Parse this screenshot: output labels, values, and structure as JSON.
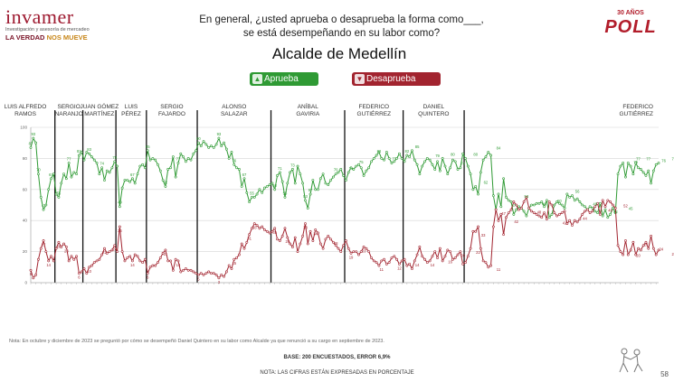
{
  "brand": {
    "name": "invamer",
    "subtitle": "Investigación y asesoría de mercadeo",
    "slogan_a": "LA VERDAD",
    "slogan_b": "NOS MUEVE"
  },
  "badge": {
    "top": "30 AÑOS",
    "main": "POLL"
  },
  "question_line1": "En general, ¿usted aprueba o desaprueba la forma como___,",
  "question_line2": "se está desempeñando en su labor como?",
  "chart_title": "Alcalde de Medellín",
  "legend": {
    "approve": "Aprueba",
    "disapprove": "Desaprueba"
  },
  "colors": {
    "approve": "#2f9a34",
    "disapprove": "#a2242f",
    "brand": "#9e1a30"
  },
  "chart_data": {
    "type": "line",
    "ylim": [
      0,
      100
    ],
    "y_ticks": [
      0,
      20,
      40,
      60,
      80,
      100
    ],
    "periods": [
      {
        "label": "LUIS ALFREDO|RAMOS",
        "start": 0
      },
      {
        "label": "SERGIO|NARANJO",
        "start": 10
      },
      {
        "label": "JUAN GÓMEZ|MARTÍNEZ",
        "start": 21
      },
      {
        "label": "LUIS|PÉREZ",
        "start": 34
      },
      {
        "label": "SERGIO|FAJARDO",
        "start": 46
      },
      {
        "label": "ALONSO|SALAZAR",
        "start": 66
      },
      {
        "label": "ANÍBAL|GAVIRIA",
        "start": 95
      },
      {
        "label": "FEDERICO|GUTIÉRREZ",
        "start": 124
      },
      {
        "label": "DANIEL|QUINTERO",
        "start": 147
      },
      {
        "label": "FEDERICO|GUTIÉRREZ",
        "start": 171
      }
    ],
    "series": [
      {
        "name": "Aprueba",
        "values": [
          87,
          93,
          90,
          70,
          55,
          47,
          50,
          60,
          67,
          70,
          57,
          55,
          64,
          70,
          67,
          77,
          68,
          71,
          70,
          82,
          84,
          79,
          84,
          83,
          81,
          79,
          77,
          70,
          74,
          66,
          72,
          71,
          74,
          78,
          75,
          49,
          61,
          66,
          66,
          65,
          67,
          64,
          70,
          75,
          76,
          74,
          85,
          79,
          80,
          79,
          76,
          72,
          66,
          62,
          73,
          74,
          81,
          68,
          77,
          83,
          81,
          78,
          80,
          79,
          83,
          85,
          90,
          88,
          91,
          89,
          87,
          88,
          87,
          89,
          93,
          88,
          90,
          86,
          80,
          84,
          76,
          74,
          73,
          62,
          67,
          58,
          52,
          55,
          55,
          57,
          60,
          58,
          61,
          62,
          63,
          64,
          60,
          69,
          71,
          65,
          55,
          64,
          71,
          73,
          64,
          75,
          70,
          64,
          53,
          48,
          57,
          66,
          60,
          60,
          67,
          70,
          64,
          63,
          66,
          68,
          70,
          71,
          73,
          69,
          66,
          71,
          74,
          73,
          75,
          76,
          74,
          69,
          72,
          74,
          78,
          80,
          82,
          84,
          80,
          79,
          84,
          80,
          77,
          78,
          80,
          83,
          80,
          78,
          82,
          81,
          85,
          79,
          76,
          70,
          75,
          78,
          80,
          79,
          76,
          73,
          78,
          72,
          80,
          75,
          70,
          74,
          79,
          78,
          73,
          74,
          83,
          80,
          75,
          70,
          60,
          62,
          57,
          71,
          79,
          81,
          84,
          82,
          56,
          47,
          57,
          49,
          67,
          55,
          53,
          52,
          44,
          47,
          49,
          48,
          46,
          43,
          48,
          50,
          50,
          51,
          51,
          52,
          49,
          53,
          42,
          44,
          50,
          52,
          51,
          50,
          48,
          57,
          55,
          56,
          53,
          54,
          52,
          50,
          49,
          47,
          49,
          48,
          46,
          45,
          51,
          43,
          47,
          42,
          44,
          48,
          45,
          70,
          75,
          77,
          68,
          77,
          75,
          70,
          77,
          74,
          73,
          71,
          69,
          72,
          64,
          72,
          76,
          77
        ],
        "labels": [
          {
            "i": 0,
            "v": 87
          },
          {
            "i": 1,
            "v": 93
          },
          {
            "i": 3,
            "v": 70
          },
          {
            "i": 5,
            "v": 47
          },
          {
            "i": 8,
            "v": 67
          },
          {
            "i": 11,
            "v": 55
          },
          {
            "i": 15,
            "v": 77
          },
          {
            "i": 19,
            "v": 82
          },
          {
            "i": 23,
            "v": 83
          },
          {
            "i": 28,
            "v": 74
          },
          {
            "i": 33,
            "v": 78
          },
          {
            "i": 35,
            "v": 49
          },
          {
            "i": 40,
            "v": 67
          },
          {
            "i": 46,
            "v": 85
          },
          {
            "i": 53,
            "v": 62
          },
          {
            "i": 58,
            "v": 77
          },
          {
            "i": 66,
            "v": 90
          },
          {
            "i": 74,
            "v": 93
          },
          {
            "i": 80,
            "v": 76
          },
          {
            "i": 84,
            "v": 67
          },
          {
            "i": 87,
            "v": 55
          },
          {
            "i": 96,
            "v": 60
          },
          {
            "i": 98,
            "v": 71
          },
          {
            "i": 100,
            "v": 55
          },
          {
            "i": 103,
            "v": 73
          },
          {
            "i": 108,
            "v": 53
          },
          {
            "i": 110,
            "v": 57
          },
          {
            "i": 120,
            "v": 70
          },
          {
            "i": 126,
            "v": 71
          },
          {
            "i": 130,
            "v": 75
          },
          {
            "i": 137,
            "v": 82
          },
          {
            "i": 143,
            "v": 77
          },
          {
            "i": 148,
            "v": 82
          },
          {
            "i": 152,
            "v": 85
          },
          {
            "i": 160,
            "v": 79
          },
          {
            "i": 166,
            "v": 80
          },
          {
            "i": 170,
            "v": 74
          },
          {
            "i": 175,
            "v": 80
          },
          {
            "i": 179,
            "v": 62
          },
          {
            "i": 184,
            "v": 84
          },
          {
            "i": 190,
            "v": 47
          },
          {
            "i": 195,
            "v": 53
          },
          {
            "i": 202,
            "v": 48
          },
          {
            "i": 208,
            "v": 50
          },
          {
            "i": 215,
            "v": 56
          },
          {
            "i": 222,
            "v": 48
          },
          {
            "i": 230,
            "v": 43
          },
          {
            "i": 236,
            "v": 45
          },
          {
            "i": 238,
            "v": 75
          },
          {
            "i": 239,
            "v": 77
          },
          {
            "i": 243,
            "v": 77
          },
          {
            "i": 249,
            "v": 76
          },
          {
            "i": 253,
            "v": 77
          }
        ]
      },
      {
        "name": "Desaprueba",
        "values": [
          8,
          3,
          5,
          15,
          22,
          27,
          20,
          14,
          17,
          14,
          22,
          26,
          23,
          25,
          23,
          14,
          17,
          15,
          17,
          6,
          7,
          9,
          6,
          10,
          11,
          13,
          14,
          15,
          18,
          22,
          19,
          20,
          21,
          24,
          20,
          36,
          20,
          14,
          16,
          17,
          14,
          18,
          17,
          14,
          13,
          15,
          6,
          10,
          11,
          11,
          13,
          16,
          19,
          21,
          14,
          14,
          8,
          15,
          14,
          7,
          8,
          9,
          8,
          8,
          7,
          6,
          5,
          6,
          5,
          6,
          7,
          6,
          6,
          5,
          3,
          5,
          4,
          7,
          11,
          9,
          15,
          16,
          18,
          25,
          22,
          26,
          31,
          35,
          38,
          37,
          35,
          36,
          34,
          33,
          32,
          33,
          35,
          28,
          27,
          30,
          35,
          29,
          25,
          23,
          29,
          20,
          25,
          30,
          38,
          25,
          33,
          27,
          34,
          32,
          25,
          22,
          28,
          30,
          28,
          26,
          24,
          22,
          20,
          24,
          27,
          22,
          19,
          20,
          20,
          18,
          20,
          23,
          22,
          20,
          16,
          14,
          13,
          11,
          14,
          15,
          12,
          13,
          16,
          17,
          15,
          12,
          14,
          15,
          11,
          12,
          9,
          14,
          18,
          23,
          17,
          15,
          13,
          14,
          17,
          20,
          16,
          22,
          14,
          17,
          21,
          20,
          15,
          16,
          18,
          20,
          12,
          13,
          17,
          22,
          33,
          33,
          36,
          22,
          14,
          13,
          10,
          11,
          36,
          47,
          40,
          44,
          31,
          42,
          45,
          47,
          52,
          50,
          47,
          48,
          52,
          55,
          48,
          46,
          45,
          44,
          43,
          42,
          45,
          41,
          52,
          50,
          45,
          43,
          44,
          45,
          46,
          38,
          40,
          37,
          40,
          39,
          41,
          44,
          46,
          47,
          45,
          46,
          49,
          51,
          44,
          53,
          49,
          53,
          52,
          50,
          48,
          24,
          20,
          18,
          27,
          18,
          21,
          26,
          18,
          22,
          21,
          24,
          26,
          22,
          30,
          22,
          18,
          21
        ],
        "labels": [
          {
            "i": 0,
            "v": 8
          },
          {
            "i": 5,
            "v": 27
          },
          {
            "i": 7,
            "v": 14
          },
          {
            "i": 11,
            "v": 26
          },
          {
            "i": 14,
            "v": 23
          },
          {
            "i": 19,
            "v": 6
          },
          {
            "i": 23,
            "v": 10
          },
          {
            "i": 29,
            "v": 22
          },
          {
            "i": 33,
            "v": 24
          },
          {
            "i": 35,
            "v": 36
          },
          {
            "i": 40,
            "v": 14
          },
          {
            "i": 46,
            "v": 6
          },
          {
            "i": 53,
            "v": 21
          },
          {
            "i": 58,
            "v": 14
          },
          {
            "i": 66,
            "v": 5
          },
          {
            "i": 74,
            "v": 3
          },
          {
            "i": 80,
            "v": 15
          },
          {
            "i": 86,
            "v": 31
          },
          {
            "i": 88,
            "v": 38
          },
          {
            "i": 96,
            "v": 35
          },
          {
            "i": 101,
            "v": 29
          },
          {
            "i": 108,
            "v": 38
          },
          {
            "i": 112,
            "v": 34
          },
          {
            "i": 120,
            "v": 28
          },
          {
            "i": 126,
            "v": 19
          },
          {
            "i": 131,
            "v": 23
          },
          {
            "i": 138,
            "v": 11
          },
          {
            "i": 145,
            "v": 12
          },
          {
            "i": 152,
            "v": 14
          },
          {
            "i": 158,
            "v": 14
          },
          {
            "i": 165,
            "v": 16
          },
          {
            "i": 170,
            "v": 20
          },
          {
            "i": 176,
            "v": 22
          },
          {
            "i": 178,
            "v": 33
          },
          {
            "i": 184,
            "v": 11
          },
          {
            "i": 186,
            "v": 47
          },
          {
            "i": 191,
            "v": 42
          },
          {
            "i": 200,
            "v": 48
          },
          {
            "i": 210,
            "v": 41
          },
          {
            "i": 218,
            "v": 44
          },
          {
            "i": 228,
            "v": 49
          },
          {
            "i": 234,
            "v": 52
          },
          {
            "i": 239,
            "v": 20
          },
          {
            "i": 242,
            "v": 27
          },
          {
            "i": 248,
            "v": 24
          },
          {
            "i": 253,
            "v": 21
          }
        ]
      }
    ]
  },
  "footer": {
    "note": "Nota: En octubre y diciembre de 2023 se preguntó por cómo se desempeñó Daniel Quintero en su labor como Alcalde ya que renunció a su cargo en septiembre de 2023.",
    "base": "BASE: 200 ENCUESTADOS, ERROR 6,9%",
    "percent_note": "NOTA: LAS CIFRAS ESTÁN EXPRESADAS EN PORCENTAJE",
    "page": "58"
  }
}
